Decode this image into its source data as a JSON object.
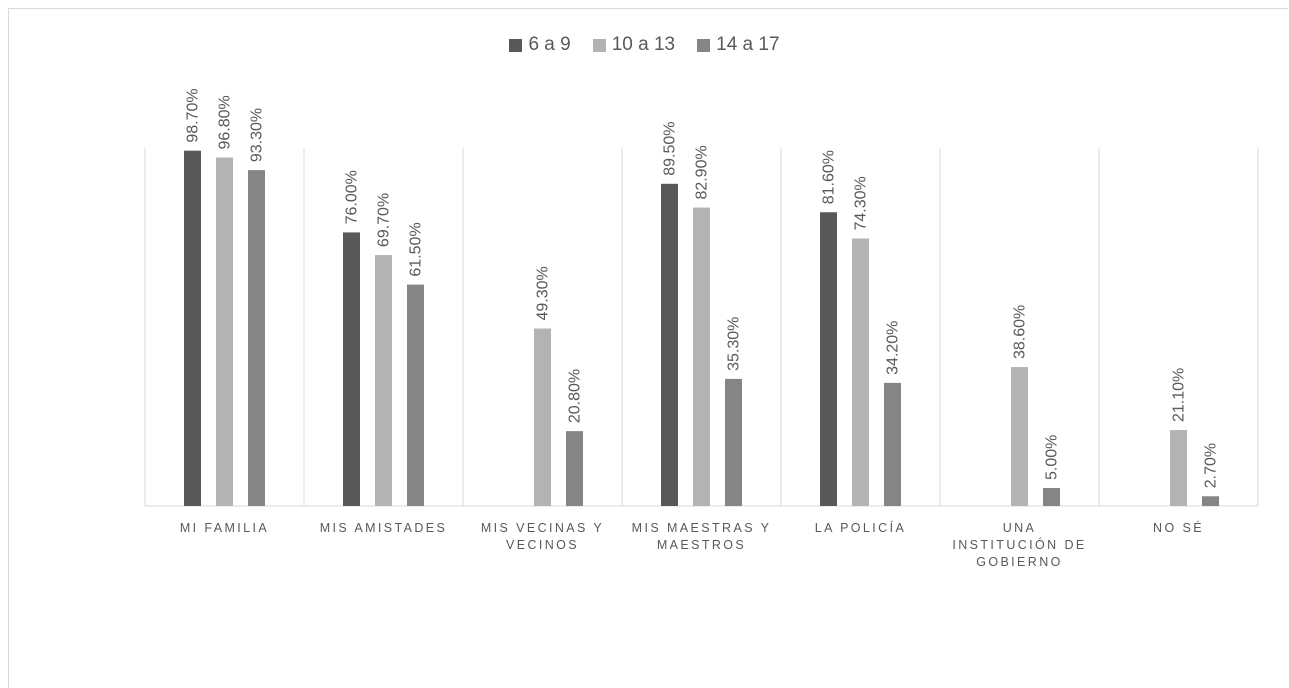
{
  "chart_data": {
    "type": "bar",
    "categories": [
      [
        "MI FAMILIA"
      ],
      [
        "MIS AMISTADES"
      ],
      [
        "MIS VECINAS Y",
        "VECINOS"
      ],
      [
        "MIS MAESTRAS Y",
        "MAESTROS"
      ],
      [
        "LA POLICÍA"
      ],
      [
        "UNA",
        "INSTITUCIÓN DE",
        "GOBIERNO"
      ],
      [
        "NO SÉ"
      ]
    ],
    "series": [
      {
        "name": "6 a 9",
        "color": "#595959",
        "values": [
          98.7,
          76.0,
          null,
          89.5,
          81.6,
          null,
          null
        ],
        "labels": [
          "98.70%",
          "76.00%",
          null,
          "89.50%",
          "81.60%",
          null,
          null
        ]
      },
      {
        "name": "10 a 13",
        "color": "#b3b3b3",
        "values": [
          96.8,
          69.7,
          49.3,
          82.9,
          74.3,
          38.6,
          21.1
        ],
        "labels": [
          "96.80%",
          "69.70%",
          "49.30%",
          "82.90%",
          "74.30%",
          "38.60%",
          "21.10%"
        ]
      },
      {
        "name": "14 a 17",
        "color": "#858585",
        "values": [
          93.3,
          61.5,
          20.8,
          35.3,
          34.2,
          5.0,
          2.7
        ],
        "labels": [
          "93.30%",
          "61.50%",
          "20.80%",
          "35.30%",
          "34.20%",
          "5.00%",
          "2.70%"
        ]
      }
    ],
    "ylim": [
      0,
      100
    ],
    "legend_position": "top-center",
    "grid": "vertical category separators"
  }
}
